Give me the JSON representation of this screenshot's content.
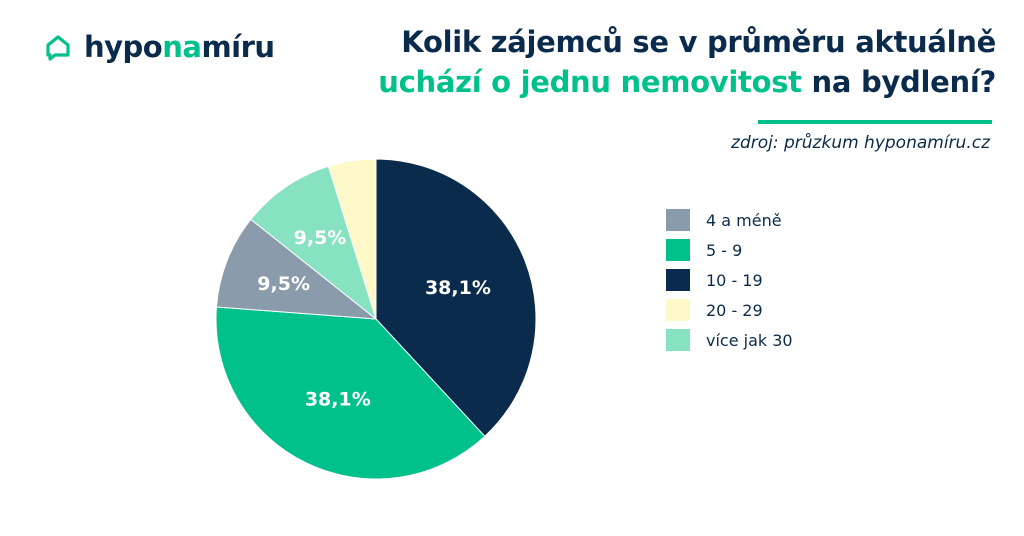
{
  "logo": {
    "part1": "hypo",
    "part2": "na",
    "part3": "míru"
  },
  "title": {
    "line1": "Kolik zájemců se v průměru aktuálně",
    "line2_accent": "uchází o jednu nemovitost",
    "line2_rest": " na bydlení?"
  },
  "source": "zdroj: průzkum hyponamíru.cz",
  "colors": {
    "accent": "#00c08b",
    "dark": "#0b2b4c"
  },
  "chart_data": {
    "type": "pie",
    "start": "12 o'clock",
    "direction": "clockwise",
    "slices": [
      {
        "label": "10 - 19",
        "value": 38.1,
        "value_label": "38,1%",
        "color": "#0b2b4c"
      },
      {
        "label": "5 - 9",
        "value": 38.1,
        "value_label": "38,1%",
        "color": "#00c08b"
      },
      {
        "label": "4 a méně",
        "value": 9.5,
        "value_label": "9,5%",
        "color": "#8a9bab"
      },
      {
        "label": "více jak 30",
        "value": 9.5,
        "value_label": "9,5%",
        "color": "#86e2c1"
      },
      {
        "label": "20 - 29",
        "value": 4.8,
        "value_label": "",
        "color": "#fff9c9"
      }
    ],
    "legend": [
      {
        "label": "4 a méně",
        "color": "#8a9bab"
      },
      {
        "label": "5 - 9",
        "color": "#00c08b"
      },
      {
        "label": "10 - 19",
        "color": "#0b2b4c"
      },
      {
        "label": "20 - 29",
        "color": "#fff9c9"
      },
      {
        "label": "více jak 30",
        "color": "#86e2c1"
      }
    ],
    "legend_position": "right"
  }
}
